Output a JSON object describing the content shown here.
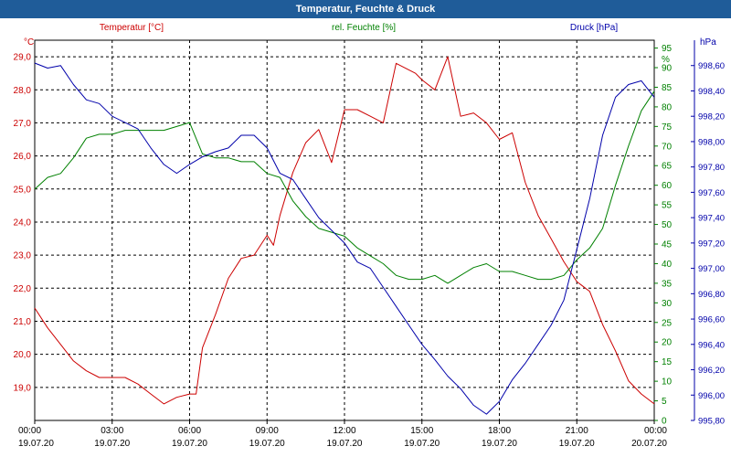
{
  "window": {
    "title": "Temperatur, Feuchte & Druck"
  },
  "chart_data": {
    "type": "line",
    "title": "Temperatur, Feuchte & Druck",
    "grid": true,
    "x_ticks": [
      {
        "time": "00:00",
        "date": "19.07.20"
      },
      {
        "time": "03:00",
        "date": "19.07.20"
      },
      {
        "time": "06:00",
        "date": "19.07.20"
      },
      {
        "time": "09:00",
        "date": "19.07.20"
      },
      {
        "time": "12:00",
        "date": "19.07.20"
      },
      {
        "time": "15:00",
        "date": "19.07.20"
      },
      {
        "time": "18:00",
        "date": "19.07.20"
      },
      {
        "time": "21:00",
        "date": "19.07.20"
      },
      {
        "time": "00:00",
        "date": "20.07.20"
      }
    ],
    "xlim_hours": [
      0,
      24
    ],
    "axes": {
      "temperature": {
        "unit": "°C",
        "label": "Temperatur [°C]",
        "color": "#cc0000",
        "ylim": [
          18.0,
          29.5
        ],
        "ticks": [
          "19,0",
          "20,0",
          "21,0",
          "22,0",
          "23,0",
          "24,0",
          "25,0",
          "26,0",
          "27,0",
          "28,0",
          "29,0"
        ]
      },
      "humidity": {
        "unit": "%",
        "label": "rel. Feuchte [%]",
        "color": "#008000",
        "ylim": [
          0,
          97
        ],
        "ticks": [
          "0",
          "5",
          "10",
          "15",
          "20",
          "25",
          "30",
          "35",
          "40",
          "45",
          "50",
          "55",
          "60",
          "65",
          "70",
          "75",
          "80",
          "85",
          "90",
          "95"
        ]
      },
      "pressure": {
        "unit": "hPa",
        "label": "Druck [hPa]",
        "color": "#0000aa",
        "ylim": [
          995.8,
          998.8
        ],
        "ticks": [
          "995,80",
          "996,00",
          "996,20",
          "996,40",
          "996,60",
          "996,80",
          "997,00",
          "997,20",
          "997,40",
          "997,60",
          "997,80",
          "998,00",
          "998,20",
          "998,40",
          "998,60"
        ]
      }
    },
    "series": [
      {
        "name": "Temperatur [°C]",
        "axis": "temperature",
        "color": "#cc0000",
        "x": [
          0,
          0.5,
          1,
          1.5,
          2,
          2.5,
          3,
          3.5,
          4,
          4.5,
          5,
          5.5,
          6,
          6.25,
          6.5,
          7,
          7.5,
          8,
          8.5,
          9,
          9.25,
          9.5,
          10,
          10.5,
          11,
          11.5,
          12,
          12.5,
          13,
          13.5,
          14,
          14.5,
          14.75,
          15,
          15.5,
          16,
          16.5,
          17,
          17.5,
          18,
          18.5,
          19,
          19.5,
          20,
          20.5,
          21,
          21.5,
          22,
          22.5,
          23,
          23.5,
          24
        ],
        "values": [
          21.4,
          20.8,
          20.3,
          19.8,
          19.5,
          19.3,
          19.3,
          19.3,
          19.1,
          18.8,
          18.5,
          18.7,
          18.8,
          18.8,
          20.2,
          21.2,
          22.3,
          22.9,
          23.0,
          23.6,
          23.3,
          24.2,
          25.5,
          26.4,
          26.8,
          25.8,
          27.4,
          27.4,
          27.2,
          27.0,
          28.8,
          28.6,
          28.5,
          28.3,
          28.0,
          29.0,
          27.2,
          27.3,
          27.0,
          26.5,
          26.7,
          25.2,
          24.2,
          23.5,
          22.8,
          22.2,
          21.9,
          20.9,
          20.1,
          19.2,
          18.8,
          18.5
        ]
      },
      {
        "name": "rel. Feuchte [%]",
        "axis": "humidity",
        "color": "#008000",
        "x": [
          0,
          0.5,
          1,
          1.5,
          2,
          2.5,
          3,
          3.5,
          4,
          4.5,
          5,
          5.5,
          6,
          6.5,
          7,
          7.5,
          8,
          8.5,
          9,
          9.5,
          10,
          10.5,
          11,
          11.5,
          12,
          12.5,
          13,
          13.5,
          14,
          14.5,
          15,
          15.5,
          16,
          16.5,
          17,
          17.5,
          18,
          18.5,
          19,
          19.5,
          20,
          20.5,
          21,
          21.5,
          22,
          22.5,
          23,
          23.5,
          24
        ],
        "values": [
          59,
          62,
          63,
          67,
          72,
          73,
          73,
          74,
          74,
          74,
          74,
          75,
          76,
          68,
          67,
          67,
          66,
          66,
          63,
          62,
          56,
          52,
          49,
          48,
          47,
          44,
          42,
          40,
          37,
          36,
          36,
          37,
          35,
          37,
          39,
          40,
          38,
          38,
          37,
          36,
          36,
          37,
          41,
          44,
          49,
          60,
          70,
          79,
          84
        ]
      },
      {
        "name": "Druck [hPa]",
        "axis": "pressure",
        "color": "#0000aa",
        "x": [
          0,
          0.5,
          1,
          1.5,
          2,
          2.5,
          3,
          3.5,
          4,
          4.5,
          5,
          5.5,
          6,
          6.5,
          7,
          7.5,
          8,
          8.5,
          9,
          9.5,
          10,
          10.5,
          11,
          11.5,
          12,
          12.5,
          13,
          13.5,
          14,
          14.5,
          15,
          15.5,
          16,
          16.5,
          17,
          17.5,
          18,
          18.5,
          19,
          19.5,
          20,
          20.5,
          21,
          21.5,
          22,
          22.5,
          23,
          23.5,
          24
        ],
        "values": [
          998.62,
          998.58,
          998.6,
          998.45,
          998.33,
          998.3,
          998.2,
          998.15,
          998.1,
          997.95,
          997.82,
          997.75,
          997.82,
          997.88,
          997.92,
          997.95,
          998.05,
          998.05,
          997.95,
          997.75,
          997.7,
          997.55,
          997.4,
          997.3,
          997.2,
          997.05,
          997.0,
          996.85,
          996.7,
          996.55,
          996.4,
          996.28,
          996.15,
          996.05,
          995.92,
          995.85,
          995.95,
          996.12,
          996.25,
          996.4,
          996.55,
          996.75,
          997.15,
          997.55,
          998.05,
          998.35,
          998.45,
          998.48,
          998.35
        ]
      }
    ]
  }
}
